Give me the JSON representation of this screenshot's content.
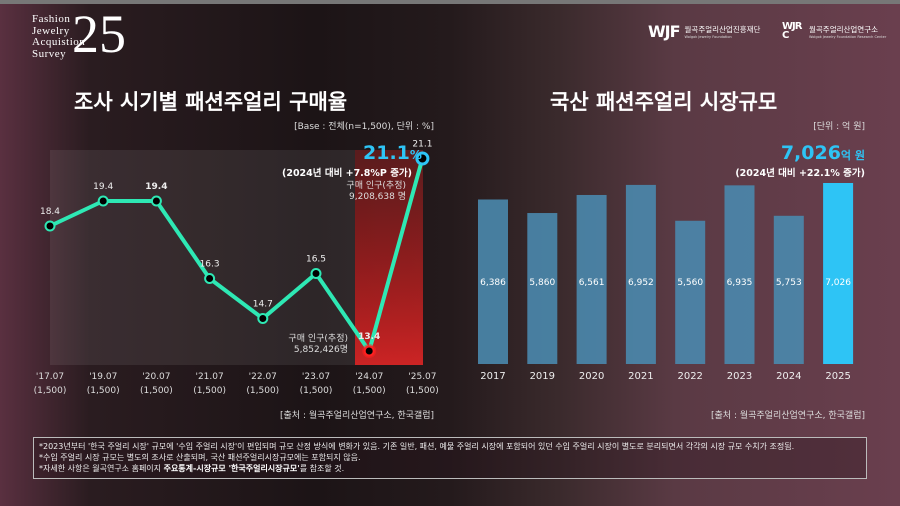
{
  "brand": {
    "lines": [
      "Fashion",
      "Jewelry",
      "Acquistion",
      "Survey"
    ],
    "number": "25"
  },
  "logos": [
    {
      "mark": "WJF",
      "name": "월곡주얼리산업진흥재단",
      "sub": "Wolgok Jewelry Foundation"
    },
    {
      "mark": "WJRC",
      "name": "월곡주얼리산업연구소",
      "sub": "Wolgok Jewelry Foundation Research Center"
    }
  ],
  "left": {
    "title": "조사 시기별 패션주얼리 구매율",
    "base": "[Base : 전체(n=1,500), 단위 : %]",
    "highlight": "21.1",
    "highlight_unit": "%",
    "change": "(2024년 대비 +7.8%P 증가)",
    "pop2025_label": "구매 인구(추정)",
    "pop2025": "9,208,638 명",
    "pop2024_label": "구매 인구(추정)",
    "pop2024": "5,852,426명",
    "source": "[출처 : 월곡주얼리산업연구소, 한국갤럽]"
  },
  "right": {
    "title": "국산 패션주얼리 시장규모",
    "unit": "[단위 : 억 원]",
    "highlight": "7,026",
    "highlight_unit": "억 원",
    "change": "(2024년 대비 +22.1% 증가)",
    "source": "[출처 : 월곡주얼리산업연구소, 한국갤럽]"
  },
  "notes": [
    "*2023년부터 '한국 주얼리 시장' 규모에 '수입 주얼리 시장'이 편입되며 규모 산정 방식에 변화가 있음. 기존 일반, 패션, 예물 주얼리 시장에 포함되어 있던 수입 주얼리 시장이 별도로 분리되면서 각각의 시장 규모 수치가 조정됨.",
    "*수입 주얼리 시장 규모는 별도의 조사로 산출되며, 국산 패션주얼리시장규모에는 포함되지 않음.",
    "*자세한 사항은 월곡연구소 홈페이지 ",
    "주요통계-시장규모 '한국주얼리시장규모'",
    "를 참조할 것."
  ],
  "chart_data": [
    {
      "type": "line",
      "title": "조사 시기별 패션주얼리 구매율",
      "categories": [
        "'17.07",
        "'19.07",
        "'20.07",
        "'21.07",
        "'22.07",
        "'23.07",
        "'24.07",
        "'25.07"
      ],
      "sample": [
        "(1,500)",
        "(1,500)",
        "(1,500)",
        "(1,500)",
        "(1,500)",
        "(1,500)",
        "(1,500)",
        "(1,500)"
      ],
      "values": [
        18.4,
        19.4,
        19.4,
        16.3,
        14.7,
        16.5,
        13.4,
        21.1
      ],
      "labels": [
        "18.4",
        "19.4",
        "19.4",
        "16.3",
        "14.7",
        "16.5",
        "13.4",
        "21.1"
      ],
      "ylabel": "%",
      "colors": {
        "line": "#2ee8b4",
        "low": "#ff2020",
        "high": "#2ec4f5"
      }
    },
    {
      "type": "bar",
      "title": "국산 패션주얼리 시장규모",
      "categories": [
        "2017",
        "2019",
        "2020",
        "2021",
        "2022",
        "2023",
        "2024",
        "2025"
      ],
      "values": [
        6386,
        5860,
        6561,
        6952,
        5560,
        6935,
        5753,
        7026
      ],
      "labels": [
        "6,386",
        "5,860",
        "6,561",
        "6,952",
        "5,560",
        "6,935",
        "5,753",
        "7,026"
      ],
      "ylabel": "억 원",
      "colors": {
        "bar": "#4a88ad",
        "highlight": "#2ec4f5"
      }
    }
  ]
}
